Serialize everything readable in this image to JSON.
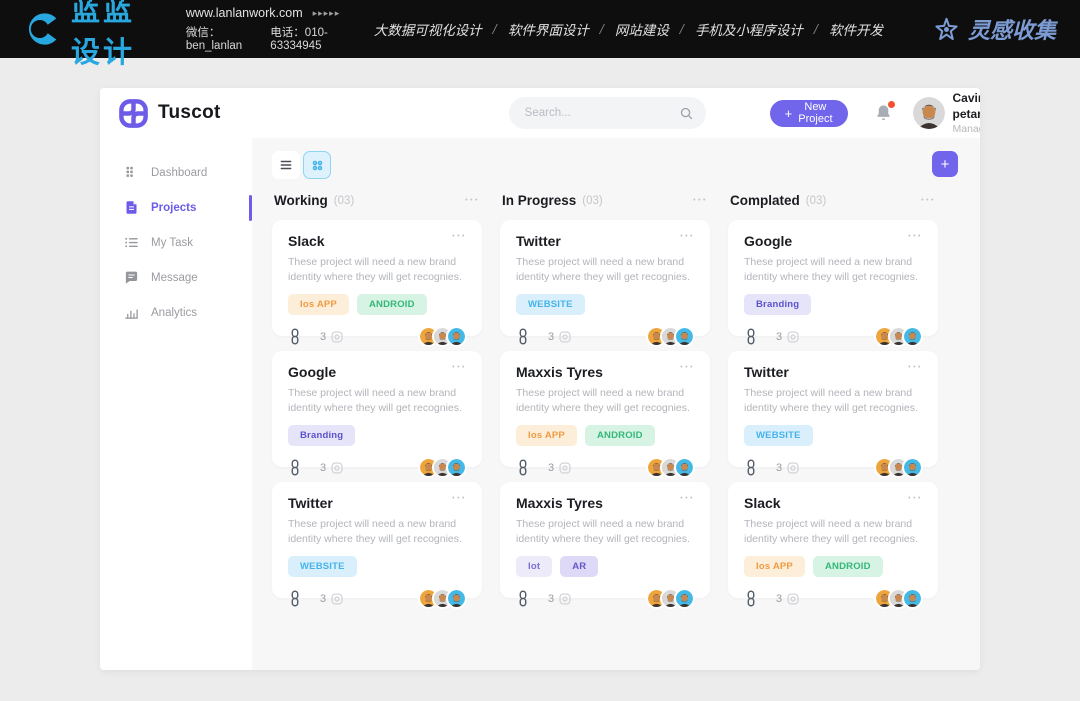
{
  "banner": {
    "brand": "蓝蓝设计",
    "website": "www.lanlanwork.com",
    "arrows": "▸▸▸▸▸",
    "wechat": "微信：ben_lanlan",
    "phone": "电话：010-63334945",
    "nav": [
      "大数据可视化设计",
      "软件界面设计",
      "网站建设",
      "手机及小程序设计",
      "软件开发"
    ],
    "separator": "/",
    "collect": "灵感收集"
  },
  "header": {
    "brand": "Tuscot",
    "search_placeholder": "Search...",
    "plus": "+",
    "new_project": "New Project",
    "user_name": "Cavin petarson",
    "user_role": "Manager"
  },
  "sidebar": {
    "items": [
      {
        "id": "dashboard",
        "label": "Dashboard",
        "icon": "dashboard-grid-icon",
        "active": false
      },
      {
        "id": "projects",
        "label": "Projects",
        "icon": "projects-file-icon",
        "active": true
      },
      {
        "id": "mytask",
        "label": "My Task",
        "icon": "task-list-icon",
        "active": false
      },
      {
        "id": "message",
        "label": "Message",
        "icon": "message-chat-icon",
        "active": false
      },
      {
        "id": "analytics",
        "label": "Analytics",
        "icon": "analytics-chart-icon",
        "active": false
      }
    ]
  },
  "board": {
    "add_button": "+",
    "menu_dots": "•••",
    "description": "These project will need a new brand identity where they will get recognies.",
    "attachment_count": "3",
    "columns": [
      {
        "title": "Working",
        "count": "(03)",
        "cards": [
          {
            "title": "Slack",
            "tags": [
              "ios_app",
              "android"
            ]
          },
          {
            "title": "Google",
            "tags": [
              "branding"
            ]
          },
          {
            "title": "Twitter",
            "tags": [
              "website"
            ]
          }
        ]
      },
      {
        "title": "In Progress",
        "count": "(03)",
        "cards": [
          {
            "title": "Twitter",
            "tags": [
              "website"
            ]
          },
          {
            "title": "Maxxis Tyres",
            "tags": [
              "ios_app",
              "android"
            ]
          },
          {
            "title": "Maxxis Tyres",
            "tags": [
              "iot",
              "ar"
            ]
          }
        ]
      },
      {
        "title": "Complated",
        "count": "(03)",
        "cards": [
          {
            "title": "Google",
            "tags": [
              "branding"
            ]
          },
          {
            "title": "Twitter",
            "tags": [
              "website"
            ]
          },
          {
            "title": "Slack",
            "tags": [
              "ios_app",
              "android"
            ]
          }
        ]
      }
    ]
  },
  "tags": {
    "ios_app": {
      "label": "Ios APP",
      "bg": "#fdeeda",
      "color": "#f09a44"
    },
    "android": {
      "label": "ANDROID",
      "bg": "#d6f3e3",
      "color": "#34b77a"
    },
    "website": {
      "label": "WEBSITE",
      "bg": "#d9f0fc",
      "color": "#46b3ea"
    },
    "branding": {
      "label": "Branding",
      "bg": "#e6e4f8",
      "color": "#5c52cc"
    },
    "iot": {
      "label": "Iot",
      "bg": "#edeafa",
      "color": "#7b6fd6"
    },
    "ar": {
      "label": "AR",
      "bg": "#ded9f6",
      "color": "#6257c9"
    }
  },
  "avatars": [
    {
      "bg": "#eda53c"
    },
    {
      "bg": "#d9d9d9"
    },
    {
      "bg": "#45b9e6"
    }
  ],
  "colors": {
    "accent": "#7165ec",
    "banner_blue": "#29a8e0",
    "collect_blue": "#7d9cd5",
    "notification_dot": "#f4512c"
  }
}
